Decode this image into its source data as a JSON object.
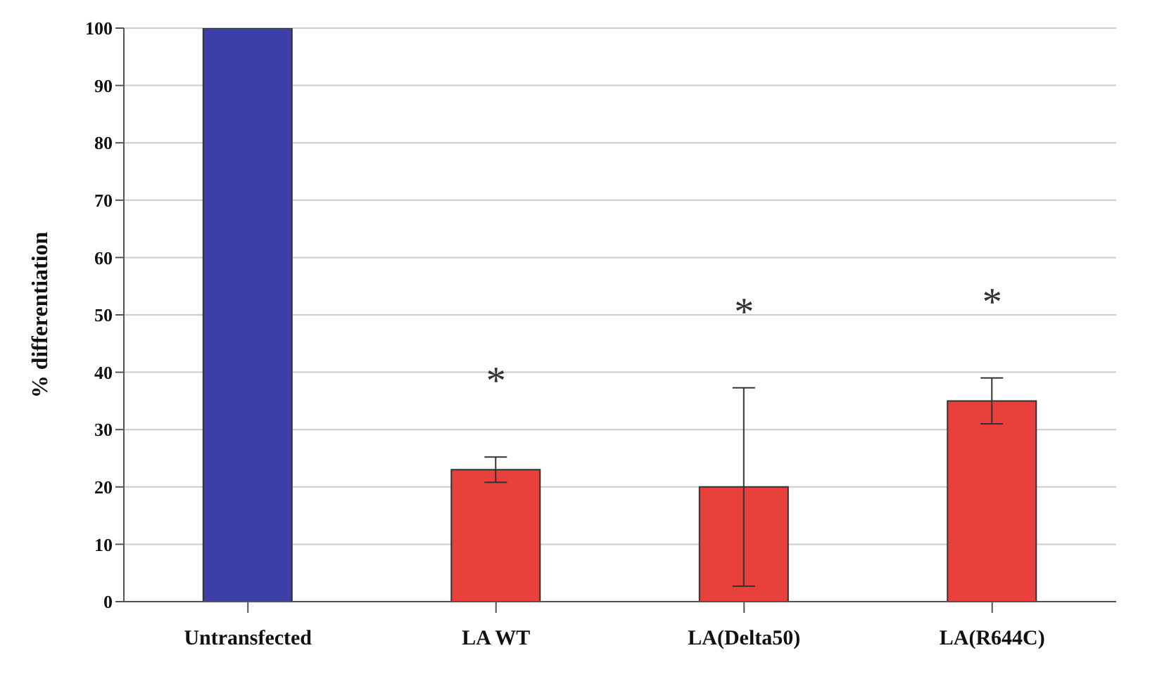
{
  "chart_data": {
    "type": "bar",
    "ylabel": "% differentiation",
    "categories": [
      "Untransfected",
      "LA WT",
      "LA(Delta50)",
      "LA(R644C)"
    ],
    "values": [
      100,
      23,
      20,
      35
    ],
    "errors": [
      null,
      2.2,
      17.3,
      4
    ],
    "colors": [
      "#3b3fa6",
      "#e8413b",
      "#e8413b",
      "#e8413b"
    ],
    "ylim": [
      0,
      100
    ],
    "yticks": [
      0,
      10,
      20,
      30,
      40,
      50,
      60,
      70,
      80,
      90,
      100
    ],
    "grid": "y",
    "annotations": [
      "*",
      "*",
      "*"
    ]
  }
}
